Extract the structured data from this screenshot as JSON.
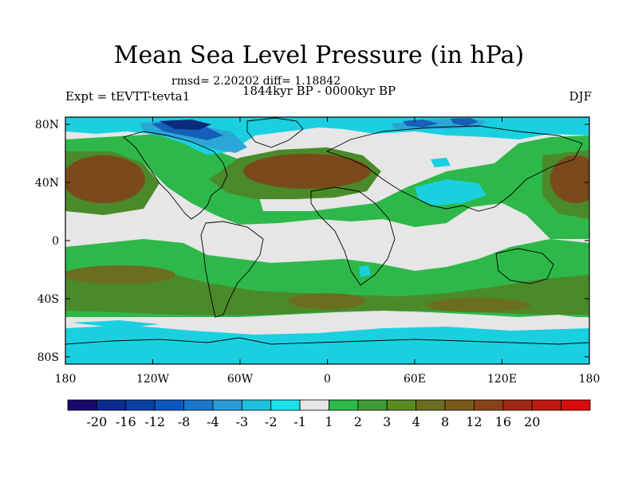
{
  "title": "Mean Sea Level Pressure (in hPa)",
  "stats_text": "rmsd= 2.20202 diff= 1.18842",
  "period_text": "1844kyr BP - 0000kyr BP",
  "experiment_text": "Expt = tEVTT-tevta1",
  "season_text": "DJF",
  "map": {
    "x_ticks": [
      {
        "value": -180,
        "label": "180"
      },
      {
        "value": -120,
        "label": "120W"
      },
      {
        "value": -60,
        "label": "60W"
      },
      {
        "value": 0,
        "label": "0"
      },
      {
        "value": 60,
        "label": "60E"
      },
      {
        "value": 120,
        "label": "120E"
      },
      {
        "value": 180,
        "label": "180"
      }
    ],
    "y_ticks": [
      {
        "value": 80,
        "label": "80N"
      },
      {
        "value": 40,
        "label": "40N"
      },
      {
        "value": 0,
        "label": "0"
      },
      {
        "value": -40,
        "label": "40S"
      },
      {
        "value": -80,
        "label": "80S"
      }
    ],
    "colors": {
      "background": "#e6e6e6",
      "green": "#2eb84a",
      "darkgreen": "#4a8a2a",
      "olive": "#6b6e1e",
      "brown": "#7a4a1a",
      "cyan": "#1ad0e0",
      "lightblue": "#2ca6d6",
      "blue": "#1560b8",
      "navy": "#0a2a7a"
    }
  },
  "legend": {
    "colors": [
      "#1a0a6e",
      "#0a2a8e",
      "#0a3fa0",
      "#0c56bc",
      "#1b78cc",
      "#2d9ad6",
      "#1fc2dc",
      "#1ae0e8",
      "#e6e6e6",
      "#2eb84a",
      "#3f9a36",
      "#5a8a22",
      "#6b6e1e",
      "#7a5a1a",
      "#8a4218",
      "#a02a14",
      "#c01a10",
      "#d80c0a"
    ],
    "labels": [
      "-20",
      "-16",
      "-12",
      "-8",
      "-4",
      "-3",
      "-2",
      "-1",
      "1",
      "2",
      "3",
      "4",
      "8",
      "12",
      "16",
      "20"
    ]
  }
}
